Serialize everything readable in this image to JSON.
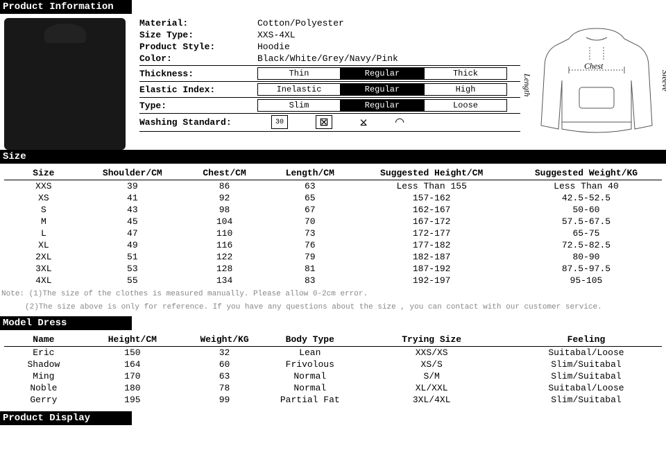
{
  "headers": {
    "product_info": "Product Information",
    "size": "Size",
    "model_dress": "Model Dress",
    "product_display": "Product Display"
  },
  "info": {
    "material_label": "Material:",
    "material_val": "Cotton/Polyester",
    "sizetype_label": "Size Type:",
    "sizetype_val": "XXS-4XL",
    "style_label": "Product Style:",
    "style_val": "Hoodie",
    "color_label": "Color:",
    "color_val": "Black/White/Grey/Navy/Pink",
    "thickness_label": "Thickness:",
    "thickness_opts": [
      "Thin",
      "Regular",
      "Thick"
    ],
    "elastic_label": "Elastic Index:",
    "elastic_opts": [
      "Inelastic",
      "Regular",
      "High"
    ],
    "type_label": "Type:",
    "type_opts": [
      "Slim",
      "Regular",
      "Loose"
    ],
    "washing_label": "Washing Standard:",
    "wash1": "30"
  },
  "diagram_labels": {
    "chest": "Chest",
    "length": "Length",
    "sleeve": "Sleeve"
  },
  "size_table": {
    "columns": [
      "Size",
      "Shoulder/CM",
      "Chest/CM",
      "Length/CM",
      "Suggested Height/CM",
      "Suggested Weight/KG"
    ],
    "rows": [
      [
        "XXS",
        "39",
        "86",
        "63",
        "Less Than 155",
        "Less Than 40"
      ],
      [
        "XS",
        "41",
        "92",
        "65",
        "157-162",
        "42.5-52.5"
      ],
      [
        "S",
        "43",
        "98",
        "67",
        "162-167",
        "50-60"
      ],
      [
        "M",
        "45",
        "104",
        "70",
        "167-172",
        "57.5-67.5"
      ],
      [
        "L",
        "47",
        "110",
        "73",
        "172-177",
        "65-75"
      ],
      [
        "XL",
        "49",
        "116",
        "76",
        "177-182",
        "72.5-82.5"
      ],
      [
        "2XL",
        "51",
        "122",
        "79",
        "182-187",
        "80-90"
      ],
      [
        "3XL",
        "53",
        "128",
        "81",
        "187-192",
        "87.5-97.5"
      ],
      [
        "4XL",
        "55",
        "134",
        "83",
        "192-197",
        "95-105"
      ]
    ]
  },
  "notes": {
    "n1": "Note: (1)The size of the clothes is measured manually. Please allow 0-2cm error.",
    "n2": "(2)The size above is only for reference. If you have any questions about the size , you can contact with our customer service."
  },
  "model_table": {
    "columns": [
      "Name",
      "Height/CM",
      "Weight/KG",
      "Body Type",
      "Trying Size",
      "Feeling"
    ],
    "rows": [
      [
        "Eric",
        "150",
        "32",
        "Lean",
        "XXS/XS",
        "Suitabal/Loose"
      ],
      [
        "Shadow",
        "164",
        "60",
        "Frivolous",
        "XS/S",
        "Slim/Suitabal"
      ],
      [
        "Ming",
        "170",
        "63",
        "Normal",
        "S/M",
        "Slim/Suitabal"
      ],
      [
        "Noble",
        "180",
        "78",
        "Normal",
        "XL/XXL",
        "Suitabal/Loose"
      ],
      [
        "Gerry",
        "195",
        "99",
        "Partial Fat",
        "3XL/4XL",
        "Slim/Suitabal"
      ]
    ]
  },
  "styling": {
    "bg_header": "#000000",
    "fg_header": "#ffffff",
    "scale_selected_index": 1,
    "col_widths_pct": [
      12,
      15,
      13,
      13,
      24,
      23
    ]
  }
}
